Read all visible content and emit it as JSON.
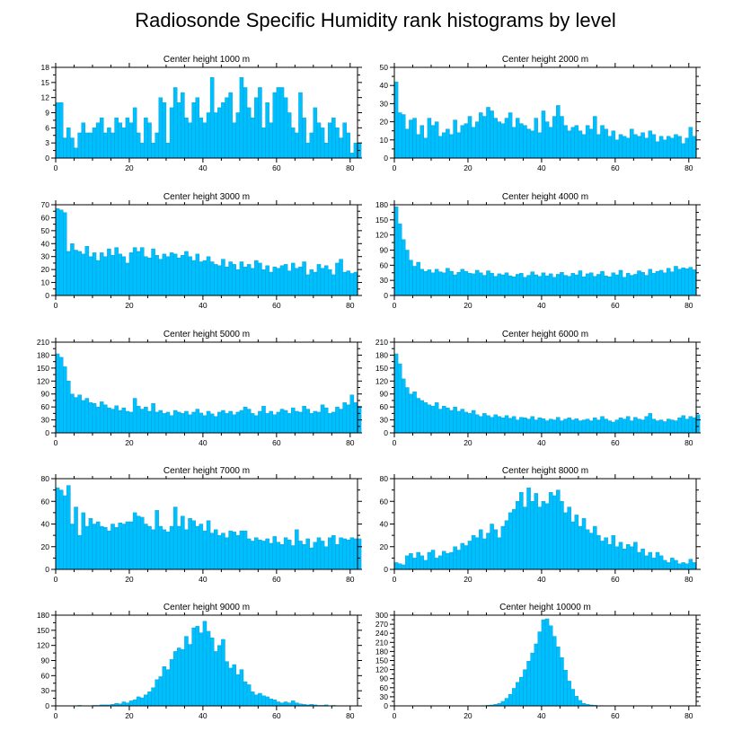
{
  "chart_data": {
    "title": "Radiosonde Specific Humidity rank histograms by level",
    "type": "bar",
    "bar_color": "#00bfff",
    "xlim": [
      0,
      82
    ],
    "xticks": [
      0,
      20,
      40,
      60,
      80
    ],
    "panels": [
      {
        "title": "Center height 1000 m",
        "ylim": [
          0,
          18
        ],
        "yticks": [
          0,
          3,
          6,
          9,
          12,
          15,
          18
        ],
        "values": [
          11,
          11,
          4,
          6,
          4,
          2,
          5,
          7,
          5,
          5,
          6,
          7,
          8,
          5,
          6,
          5,
          8,
          7,
          6,
          8,
          7,
          10,
          5,
          3,
          8,
          7,
          3,
          5,
          12,
          11,
          3,
          10,
          14,
          11,
          13,
          8,
          7,
          11,
          12,
          8,
          7,
          9,
          16,
          9,
          10,
          11,
          12,
          13,
          7,
          9,
          16,
          14,
          10,
          8,
          12,
          14,
          6,
          11,
          7,
          13,
          14,
          14,
          12,
          9,
          6,
          5,
          13,
          8,
          3,
          5,
          10,
          7,
          6,
          3,
          7,
          8,
          6,
          4,
          7,
          5,
          1,
          3,
          3
        ]
      },
      {
        "title": "Center height 2000 m",
        "ylim": [
          0,
          50
        ],
        "yticks": [
          0,
          10,
          20,
          30,
          40,
          50
        ],
        "values": [
          42,
          25,
          24,
          16,
          21,
          22,
          13,
          18,
          11,
          22,
          18,
          20,
          12,
          14,
          16,
          13,
          21,
          14,
          18,
          19,
          23,
          17,
          20,
          25,
          23,
          28,
          26,
          22,
          20,
          19,
          22,
          25,
          17,
          22,
          19,
          18,
          16,
          15,
          22,
          14,
          26,
          20,
          17,
          23,
          29,
          23,
          18,
          15,
          17,
          18,
          15,
          13,
          18,
          16,
          23,
          13,
          18,
          16,
          12,
          15,
          10,
          13,
          12,
          11,
          16,
          13,
          12,
          14,
          11,
          15,
          13,
          9,
          12,
          10,
          12,
          11,
          13,
          12,
          8,
          11,
          17,
          12
        ]
      },
      {
        "title": "Center height 3000 m",
        "ylim": [
          0,
          70
        ],
        "yticks": [
          0,
          10,
          20,
          30,
          40,
          50,
          60,
          70
        ],
        "values": [
          67,
          66,
          64,
          34,
          40,
          35,
          34,
          32,
          38,
          30,
          33,
          27,
          33,
          30,
          36,
          31,
          37,
          32,
          30,
          25,
          33,
          37,
          34,
          37,
          30,
          29,
          36,
          31,
          28,
          32,
          30,
          33,
          32,
          29,
          31,
          34,
          30,
          27,
          32,
          26,
          27,
          30,
          26,
          24,
          23,
          28,
          22,
          26,
          24,
          20,
          26,
          22,
          24,
          21,
          27,
          25,
          20,
          23,
          18,
          22,
          21,
          23,
          24,
          19,
          25,
          21,
          22,
          26,
          16,
          20,
          18,
          24,
          21,
          23,
          20,
          16,
          25,
          28,
          18,
          19,
          17,
          18
        ]
      },
      {
        "title": "Center height 4000 m",
        "ylim": [
          0,
          180
        ],
        "yticks": [
          0,
          30,
          60,
          90,
          120,
          150,
          180
        ],
        "values": [
          176,
          142,
          111,
          90,
          70,
          58,
          66,
          52,
          48,
          51,
          45,
          52,
          47,
          45,
          54,
          48,
          41,
          46,
          52,
          48,
          44,
          43,
          50,
          45,
          40,
          49,
          44,
          38,
          43,
          41,
          45,
          39,
          37,
          42,
          44,
          36,
          40,
          47,
          41,
          38,
          45,
          39,
          43,
          36,
          42,
          46,
          40,
          38,
          44,
          41,
          49,
          37,
          43,
          45,
          38,
          42,
          48,
          39,
          37,
          45,
          41,
          50,
          36,
          44,
          40,
          42,
          49,
          46,
          40,
          52,
          44,
          48,
          50,
          45,
          54,
          47,
          58,
          52,
          55,
          53,
          56,
          51
        ]
      },
      {
        "title": "Center height 5000 m",
        "ylim": [
          0,
          210
        ],
        "yticks": [
          0,
          30,
          60,
          90,
          120,
          150,
          180,
          210
        ],
        "values": [
          183,
          175,
          153,
          120,
          90,
          82,
          88,
          75,
          80,
          70,
          68,
          60,
          72,
          65,
          58,
          55,
          63,
          52,
          58,
          50,
          48,
          80,
          62,
          55,
          60,
          50,
          68,
          48,
          52,
          45,
          48,
          40,
          52,
          48,
          45,
          50,
          42,
          48,
          55,
          46,
          40,
          50,
          44,
          38,
          48,
          52,
          45,
          50,
          42,
          48,
          52,
          60,
          55,
          45,
          40,
          50,
          62,
          45,
          50,
          42,
          48,
          55,
          52,
          45,
          58,
          50,
          48,
          62,
          55,
          45,
          50,
          48,
          65,
          58,
          45,
          48,
          60,
          55,
          70,
          65,
          88,
          70,
          62
        ]
      },
      {
        "title": "Center height 6000 m",
        "ylim": [
          0,
          210
        ],
        "yticks": [
          0,
          30,
          60,
          90,
          120,
          150,
          180,
          210
        ],
        "values": [
          183,
          160,
          125,
          105,
          90,
          95,
          80,
          75,
          70,
          65,
          62,
          70,
          55,
          62,
          58,
          52,
          60,
          50,
          55,
          48,
          45,
          52,
          42,
          38,
          45,
          40,
          36,
          42,
          38,
          35,
          40,
          34,
          38,
          30,
          36,
          35,
          32,
          38,
          30,
          35,
          33,
          28,
          32,
          30,
          36,
          28,
          32,
          35,
          30,
          33,
          28,
          30,
          32,
          28,
          35,
          30,
          38,
          32,
          28,
          25,
          30,
          35,
          32,
          38,
          28,
          36,
          32,
          30,
          38,
          45,
          32,
          28,
          30,
          26,
          32,
          30,
          28,
          35,
          40,
          32,
          38,
          35,
          42
        ]
      },
      {
        "title": "Center height 7000 m",
        "ylim": [
          0,
          80
        ],
        "yticks": [
          0,
          20,
          40,
          60,
          80
        ],
        "values": [
          72,
          70,
          65,
          74,
          40,
          55,
          30,
          50,
          38,
          45,
          40,
          42,
          38,
          37,
          34,
          40,
          37,
          41,
          40,
          42,
          42,
          50,
          47,
          46,
          40,
          38,
          35,
          52,
          38,
          35,
          33,
          38,
          55,
          38,
          47,
          35,
          45,
          43,
          38,
          40,
          34,
          43,
          32,
          35,
          30,
          32,
          28,
          34,
          33,
          30,
          34,
          34,
          27,
          25,
          28,
          26,
          25,
          27,
          23,
          29,
          24,
          22,
          28,
          26,
          21,
          35,
          25,
          22,
          27,
          19,
          24,
          28,
          25,
          20,
          28,
          30,
          22,
          28,
          27,
          26,
          28,
          27,
          27
        ]
      },
      {
        "title": "Center height 8000 m",
        "ylim": [
          0,
          80
        ],
        "yticks": [
          0,
          20,
          40,
          60,
          80
        ],
        "values": [
          6,
          5,
          4,
          12,
          14,
          10,
          15,
          12,
          8,
          15,
          17,
          10,
          12,
          16,
          14,
          15,
          20,
          17,
          23,
          21,
          25,
          30,
          28,
          35,
          27,
          32,
          40,
          35,
          28,
          38,
          43,
          50,
          53,
          60,
          68,
          55,
          72,
          60,
          67,
          55,
          60,
          58,
          68,
          65,
          70,
          60,
          50,
          55,
          42,
          48,
          38,
          45,
          35,
          32,
          38,
          30,
          25,
          28,
          22,
          30,
          20,
          24,
          18,
          22,
          20,
          24,
          15,
          18,
          12,
          15,
          10,
          15,
          12,
          8,
          6,
          10,
          8,
          5,
          6,
          5,
          9,
          6
        ]
      },
      {
        "title": "Center height 9000 m",
        "ylim": [
          0,
          180
        ],
        "yticks": [
          0,
          30,
          60,
          90,
          120,
          150,
          180
        ],
        "values": [
          0,
          0,
          0,
          0,
          0,
          0,
          1,
          0,
          0,
          0,
          1,
          1,
          2,
          2,
          2,
          3,
          5,
          4,
          8,
          6,
          10,
          12,
          18,
          16,
          22,
          28,
          36,
          52,
          58,
          78,
          72,
          92,
          108,
          115,
          112,
          138,
          122,
          155,
          158,
          145,
          168,
          148,
          135,
          108,
          120,
          132,
          88,
          75,
          82,
          62,
          72,
          48,
          42,
          28,
          22,
          25,
          20,
          18,
          14,
          12,
          8,
          6,
          8,
          6,
          10,
          6,
          4,
          3,
          2,
          3,
          2,
          1,
          1,
          2,
          0,
          1,
          0,
          0,
          0,
          0,
          0,
          0
        ]
      },
      {
        "title": "Center height 10000 m",
        "ylim": [
          0,
          300
        ],
        "yticks": [
          0,
          30,
          60,
          90,
          120,
          150,
          180,
          210,
          240,
          270,
          300
        ],
        "values": [
          0,
          0,
          0,
          0,
          0,
          0,
          0,
          0,
          0,
          0,
          0,
          0,
          0,
          0,
          0,
          0,
          0,
          0,
          0,
          0,
          0,
          0,
          0,
          0,
          1,
          2,
          3,
          5,
          8,
          15,
          25,
          38,
          58,
          78,
          95,
          120,
          148,
          175,
          205,
          245,
          285,
          288,
          265,
          230,
          195,
          160,
          118,
          82,
          55,
          32,
          18,
          8,
          5,
          3,
          2,
          1,
          1,
          0,
          0,
          0,
          0,
          0,
          0,
          0,
          0,
          0,
          0,
          0,
          0,
          0,
          0,
          0,
          0,
          0,
          0,
          0,
          0,
          0,
          0,
          0,
          0,
          0
        ]
      }
    ]
  }
}
